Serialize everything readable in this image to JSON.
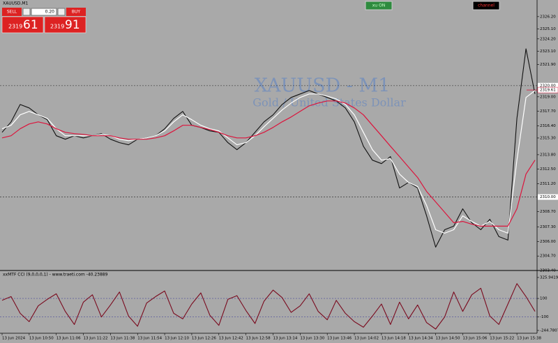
{
  "window": {
    "symbol": "XAUUSD,M1"
  },
  "trade_panel": {
    "sell": "SELL",
    "buy": "BUY",
    "lot": "0.20",
    "bid_big": "2319",
    "bid_small": "61",
    "ask_big": "2319",
    "ask_small": "91"
  },
  "buttons": {
    "toggle": "xu ON",
    "channel": "channel"
  },
  "chart_data": [
    {
      "type": "line",
      "title": "XAUUSD - M1",
      "subtitle": "Gold / United States Dollar",
      "categories": [
        "13 Jun 2024",
        null,
        null,
        "13 Jun 10:50",
        null,
        null,
        "13 Jun 11:06",
        null,
        null,
        "13 Jun 11:22",
        null,
        null,
        "13 Jun 11:38",
        null,
        null,
        "13 Jun 11:54",
        null,
        null,
        "13 Jun 12:10",
        null,
        null,
        "13 Jun 12:26",
        null,
        null,
        "13 Jun 12:42",
        null,
        null,
        "13 Jun 12:58",
        null,
        null,
        "13 Jun 13:14",
        null,
        null,
        "13 Jun 13:30",
        null,
        null,
        "13 Jun 13:46",
        null,
        null,
        "13 Jun 14:02",
        null,
        null,
        "13 Jun 14:18",
        null,
        null,
        "13 Jun 14:34",
        null,
        null,
        "13 Jun 14:50",
        null,
        null,
        "13 Jun 15:06",
        null,
        null,
        "13 Jun 15:22",
        null,
        null,
        "13 Jun 15:38",
        null,
        null
      ],
      "series": [
        {
          "color": "#111111",
          "values": [
            2315.81,
            2316.75,
            2318.31,
            2318.0,
            2317.38,
            2316.94,
            2315.5,
            2315.19,
            2315.5,
            2315.31,
            2315.5,
            2315.69,
            2315.19,
            2314.88,
            2314.69,
            2315.19,
            2315.31,
            2315.5,
            2316.13,
            2317.06,
            2317.69,
            2316.44,
            2316.25,
            2315.94,
            2315.81,
            2314.88,
            2314.25,
            2314.88,
            2315.81,
            2316.75,
            2317.38,
            2318.31,
            2318.94,
            2319.25,
            2319.56,
            2319.25,
            2318.94,
            2318.63,
            2318.0,
            2316.75,
            2314.56,
            2313.31,
            2313.0,
            2313.63,
            2310.81,
            2311.31,
            2310.81,
            2308.31,
            2305.5,
            2307.06,
            2307.38,
            2308.94,
            2307.69,
            2307.06,
            2308.0,
            2306.44,
            2306.13,
            2317.06,
            2323.31,
            2319.25
          ]
        },
        {
          "color": "#ffffff",
          "values": [
            2316.13,
            2316.44,
            2317.38,
            2317.69,
            2317.38,
            2317.06,
            2316.13,
            2315.5,
            2315.5,
            2315.5,
            2315.5,
            2315.63,
            2315.5,
            2315.19,
            2315.06,
            2315.19,
            2315.31,
            2315.5,
            2315.94,
            2316.75,
            2317.38,
            2316.94,
            2316.44,
            2316.13,
            2315.94,
            2315.31,
            2314.69,
            2314.88,
            2315.5,
            2316.31,
            2317.06,
            2317.81,
            2318.44,
            2318.94,
            2319.25,
            2319.25,
            2319.06,
            2318.81,
            2318.31,
            2317.38,
            2315.81,
            2314.25,
            2313.31,
            2313.44,
            2312.06,
            2311.31,
            2310.94,
            2309.25,
            2307.06,
            2306.75,
            2307.06,
            2308.31,
            2307.81,
            2307.38,
            2307.81,
            2307.06,
            2306.75,
            2313.31,
            2318.94,
            2319.56
          ]
        },
        {
          "color": "#dc143c",
          "values": [
            2315.31,
            2315.5,
            2316.13,
            2316.56,
            2316.75,
            2316.56,
            2316.13,
            2315.81,
            2315.69,
            2315.63,
            2315.5,
            2315.5,
            2315.5,
            2315.31,
            2315.19,
            2315.19,
            2315.19,
            2315.31,
            2315.5,
            2315.94,
            2316.44,
            2316.44,
            2316.25,
            2316.06,
            2315.81,
            2315.5,
            2315.31,
            2315.31,
            2315.5,
            2315.81,
            2316.25,
            2316.75,
            2317.19,
            2317.69,
            2318.19,
            2318.44,
            2318.63,
            2318.63,
            2318.44,
            2318.0,
            2317.38,
            2316.44,
            2315.5,
            2314.56,
            2313.63,
            2312.69,
            2311.75,
            2310.5,
            2309.56,
            2308.63,
            2307.69,
            2307.81,
            2307.56,
            2307.38,
            2307.38,
            2307.38,
            2307.38,
            2308.94,
            2312.06,
            2313.31
          ]
        }
      ],
      "ylim": [
        2303.4,
        2327.38
      ],
      "yticks": [
        {
          "value": 2326.2,
          "label": "2326.20"
        },
        {
          "value": 2325.1,
          "label": "2325.10"
        },
        {
          "value": 2324.2,
          "label": "2324.20"
        },
        {
          "value": 2323.1,
          "label": "2323.10"
        },
        {
          "value": 2321.9,
          "label": "2321.90"
        },
        {
          "value": 2319,
          "label": "2319.00"
        },
        {
          "value": 2317.7,
          "label": "2317.70"
        },
        {
          "value": 2316.4,
          "label": "2316.40"
        },
        {
          "value": 2315.3,
          "label": "2315.30"
        },
        {
          "value": 2313.8,
          "label": "2313.80"
        },
        {
          "value": 2312.5,
          "label": "2312.50"
        },
        {
          "value": 2311.2,
          "label": "2311.20"
        },
        {
          "value": 2308.7,
          "label": "2308.70"
        },
        {
          "value": 2307.3,
          "label": "2307.30"
        },
        {
          "value": 2306,
          "label": "2306.00"
        },
        {
          "value": 2304.7,
          "label": "2304.70"
        },
        {
          "value": 2303.4,
          "label": "2303.40"
        }
      ],
      "levels": [
        {
          "value": 2320,
          "label": "2320.00"
        },
        {
          "value": 2310,
          "label": "2310.00"
        }
      ],
      "last_price": {
        "value": 2319.61,
        "label": "2319.61"
      }
    },
    {
      "type": "line",
      "title": "xxMTF CCI (9,0,0,0,1) - www.traeti.com -40.23889",
      "series": [
        {
          "color": "#7a0a1e",
          "values": [
            80,
            120,
            -60,
            -150,
            20,
            90,
            150,
            -40,
            -180,
            60,
            140,
            -100,
            30,
            170,
            -90,
            -200,
            50,
            120,
            180,
            -60,
            -120,
            40,
            160,
            -80,
            -190,
            90,
            130,
            -30,
            -170,
            70,
            190,
            110,
            -50,
            20,
            150,
            -40,
            -130,
            80,
            -60,
            -150,
            -210,
            -90,
            40,
            -180,
            60,
            -120,
            30,
            -160,
            -230,
            -100,
            170,
            -40,
            140,
            210,
            -90,
            -180,
            40,
            260,
            120,
            -40
          ]
        }
      ],
      "ylim": [
        -244.7807,
        325.94194
      ],
      "yticks": [
        325.94194,
        100,
        -100,
        -244.7807
      ]
    }
  ]
}
